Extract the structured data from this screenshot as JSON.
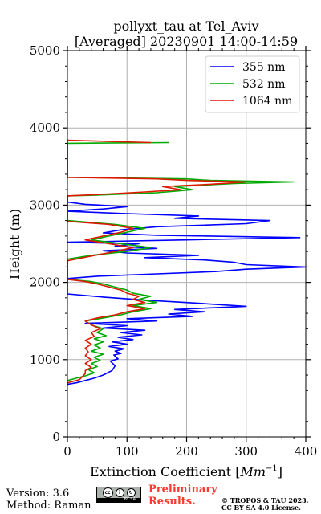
{
  "chart_data": {
    "type": "line",
    "title": "pollyxt_tau at Tel_Aviv",
    "subtitle": "[Averaged] 20230901 14:00-14:59",
    "xlabel": "Extinction Coefficient [Mm⁻¹]",
    "xlabel_main": "Extinction Coefficient [",
    "xlabel_unit": "Mm",
    "xlabel_exp": "−1",
    "xlabel_close": "]",
    "ylabel": "Height (m)",
    "xlim": [
      0,
      400
    ],
    "ylim": [
      0,
      5000
    ],
    "x_ticks": [
      "0",
      "100",
      "200",
      "300",
      "400"
    ],
    "y_ticks": [
      "0",
      "1000",
      "2000",
      "3000",
      "4000",
      "5000"
    ],
    "grid": true,
    "legend_position": "top-right",
    "series": [
      {
        "name": "355 nm",
        "color": "#0000ff",
        "points": [
          [
            0,
            680
          ],
          [
            15,
            700
          ],
          [
            30,
            730
          ],
          [
            45,
            760
          ],
          [
            60,
            800
          ],
          [
            75,
            860
          ],
          [
            80,
            920
          ],
          [
            72,
            980
          ],
          [
            85,
            1010
          ],
          [
            78,
            1060
          ],
          [
            90,
            1080
          ],
          [
            80,
            1110
          ],
          [
            95,
            1140
          ],
          [
            70,
            1170
          ],
          [
            100,
            1200
          ],
          [
            75,
            1230
          ],
          [
            110,
            1260
          ],
          [
            85,
            1290
          ],
          [
            125,
            1320
          ],
          [
            90,
            1350
          ],
          [
            130,
            1380
          ],
          [
            60,
            1410
          ],
          [
            100,
            1440
          ],
          [
            30,
            1470
          ],
          [
            150,
            1500
          ],
          [
            100,
            1530
          ],
          [
            210,
            1560
          ],
          [
            170,
            1590
          ],
          [
            230,
            1620
          ],
          [
            180,
            1650
          ],
          [
            300,
            1690
          ],
          [
            220,
            1730
          ],
          [
            130,
            1770
          ],
          [
            60,
            1810
          ],
          [
            0,
            1850
          ],
          [
            0,
            2050
          ],
          [
            50,
            2080
          ],
          [
            150,
            2110
          ],
          [
            250,
            2140
          ],
          [
            300,
            2170
          ],
          [
            400,
            2200
          ],
          [
            300,
            2230
          ],
          [
            280,
            2260
          ],
          [
            230,
            2290
          ],
          [
            130,
            2320
          ],
          [
            220,
            2350
          ],
          [
            100,
            2380
          ],
          [
            60,
            2410
          ],
          [
            150,
            2440
          ],
          [
            80,
            2470
          ],
          [
            120,
            2500
          ],
          [
            0,
            2520
          ],
          [
            200,
            2550
          ],
          [
            390,
            2580
          ],
          [
            150,
            2610
          ],
          [
            60,
            2640
          ],
          [
            90,
            2680
          ],
          [
            150,
            2720
          ],
          [
            300,
            2760
          ],
          [
            340,
            2800
          ],
          [
            180,
            2830
          ],
          [
            220,
            2860
          ],
          [
            100,
            2890
          ],
          [
            0,
            2920
          ],
          [
            60,
            2950
          ],
          [
            100,
            2980
          ],
          [
            30,
            3010
          ],
          [
            0,
            3040
          ],
          [
            0,
            3130
          ]
        ]
      },
      {
        "name": "532 nm",
        "color": "#00aa00",
        "points": [
          [
            0,
            730
          ],
          [
            15,
            760
          ],
          [
            30,
            790
          ],
          [
            45,
            830
          ],
          [
            35,
            870
          ],
          [
            50,
            910
          ],
          [
            40,
            950
          ],
          [
            55,
            990
          ],
          [
            45,
            1030
          ],
          [
            60,
            1070
          ],
          [
            40,
            1110
          ],
          [
            55,
            1150
          ],
          [
            45,
            1190
          ],
          [
            60,
            1230
          ],
          [
            45,
            1270
          ],
          [
            65,
            1310
          ],
          [
            50,
            1350
          ],
          [
            60,
            1400
          ],
          [
            40,
            1450
          ],
          [
            30,
            1500
          ],
          [
            60,
            1540
          ],
          [
            90,
            1580
          ],
          [
            110,
            1620
          ],
          [
            140,
            1660
          ],
          [
            110,
            1700
          ],
          [
            150,
            1740
          ],
          [
            120,
            1780
          ],
          [
            140,
            1820
          ],
          [
            110,
            1860
          ],
          [
            100,
            1900
          ],
          [
            80,
            1940
          ],
          [
            60,
            1980
          ],
          [
            40,
            2010
          ],
          [
            0,
            2040
          ],
          [
            0,
            2300
          ],
          [
            40,
            2350
          ],
          [
            100,
            2400
          ],
          [
            140,
            2450
          ],
          [
            90,
            2500
          ],
          [
            40,
            2550
          ],
          [
            70,
            2600
          ],
          [
            100,
            2650
          ],
          [
            130,
            2700
          ],
          [
            80,
            2750
          ],
          [
            0,
            2800
          ],
          [
            0,
            3120
          ],
          [
            50,
            3130
          ],
          [
            150,
            3160
          ],
          [
            210,
            3200
          ],
          [
            180,
            3240
          ],
          [
            280,
            3280
          ],
          [
            380,
            3300
          ],
          [
            240,
            3320
          ],
          [
            200,
            3340
          ],
          [
            0,
            3360
          ],
          [
            0,
            3800
          ],
          [
            170,
            3810
          ]
        ]
      },
      {
        "name": "1064 nm",
        "color": "#dd1a00",
        "points": [
          [
            0,
            700
          ],
          [
            20,
            740
          ],
          [
            25,
            780
          ],
          [
            30,
            820
          ],
          [
            30,
            860
          ],
          [
            40,
            900
          ],
          [
            30,
            950
          ],
          [
            40,
            1000
          ],
          [
            30,
            1050
          ],
          [
            35,
            1100
          ],
          [
            30,
            1150
          ],
          [
            40,
            1200
          ],
          [
            30,
            1250
          ],
          [
            45,
            1300
          ],
          [
            40,
            1350
          ],
          [
            55,
            1400
          ],
          [
            40,
            1450
          ],
          [
            30,
            1500
          ],
          [
            50,
            1540
          ],
          [
            80,
            1580
          ],
          [
            100,
            1620
          ],
          [
            130,
            1660
          ],
          [
            100,
            1700
          ],
          [
            130,
            1740
          ],
          [
            110,
            1780
          ],
          [
            120,
            1820
          ],
          [
            100,
            1860
          ],
          [
            90,
            1900
          ],
          [
            70,
            1940
          ],
          [
            50,
            1980
          ],
          [
            30,
            2010
          ],
          [
            0,
            2040
          ],
          [
            0,
            2280
          ],
          [
            40,
            2340
          ],
          [
            80,
            2400
          ],
          [
            110,
            2450
          ],
          [
            70,
            2500
          ],
          [
            30,
            2550
          ],
          [
            60,
            2600
          ],
          [
            90,
            2650
          ],
          [
            110,
            2700
          ],
          [
            70,
            2750
          ],
          [
            0,
            2790
          ],
          [
            0,
            3120
          ],
          [
            60,
            3140
          ],
          [
            130,
            3170
          ],
          [
            190,
            3200
          ],
          [
            160,
            3240
          ],
          [
            240,
            3270
          ],
          [
            300,
            3300
          ],
          [
            200,
            3320
          ],
          [
            150,
            3340
          ],
          [
            0,
            3360
          ],
          [
            0,
            3840
          ],
          [
            140,
            3810
          ]
        ]
      }
    ]
  },
  "footer": {
    "version": "Version: 3.6",
    "method": "Method: Raman",
    "preliminary_line1": "Preliminary",
    "preliminary_line2": "Results.",
    "copyright_line1": "© TROPOS & TAU 2023.",
    "copyright_line2": "CC BY SA 4.0 License.",
    "license_badge": {
      "label": "BY SA",
      "icons": [
        "cc-icon",
        "by-icon",
        "sa-icon"
      ]
    }
  }
}
